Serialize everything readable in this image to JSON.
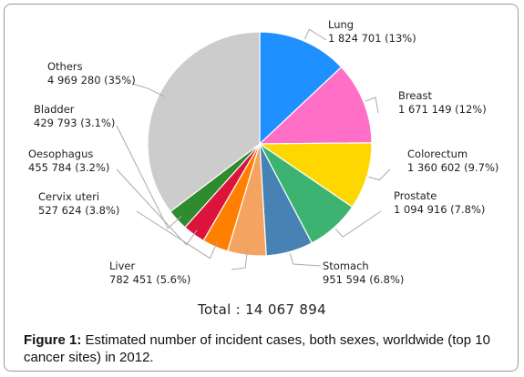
{
  "chart_data": {
    "type": "pie",
    "slices": [
      {
        "name": "Lung",
        "value": 1824701,
        "pct_label": "1 824 701 (13%)",
        "color": "#1e90ff"
      },
      {
        "name": "Breast",
        "value": 1671149,
        "pct_label": "1 671 149 (12%)",
        "color": "#ff6ec7"
      },
      {
        "name": "Colorectum",
        "value": 1360602,
        "pct_label": "1 360 602 (9.7%)",
        "color": "#ffd700"
      },
      {
        "name": "Prostate",
        "value": 1094916,
        "pct_label": "1 094 916 (7.8%)",
        "color": "#3cb371"
      },
      {
        "name": "Stomach",
        "value": 951594,
        "pct_label": "951 594 (6.8%)",
        "color": "#4682b4"
      },
      {
        "name": "Liver",
        "value": 782451,
        "pct_label": "782 451 (5.6%)",
        "color": "#f4a460"
      },
      {
        "name": "Cervix uteri",
        "value": 527624,
        "pct_label": "527 624 (3.8%)",
        "color": "#ff7f00"
      },
      {
        "name": "Oesophagus",
        "value": 455784,
        "pct_label": "455 784 (3.2%)",
        "color": "#dc143c"
      },
      {
        "name": "Bladder",
        "value": 429793,
        "pct_label": "429 793 (3.1%)",
        "color": "#2e8b2e"
      },
      {
        "name": "Others",
        "value": 4969280,
        "pct_label": "4 969 280 (35%)",
        "color": "#cccccc"
      }
    ],
    "total_label": "Total : 14 067 894"
  },
  "caption": {
    "prefix": "Figure 1:",
    "text": " Estimated number of incident cases, both sexes, worldwide (top 10 cancer sites) in 2012."
  }
}
